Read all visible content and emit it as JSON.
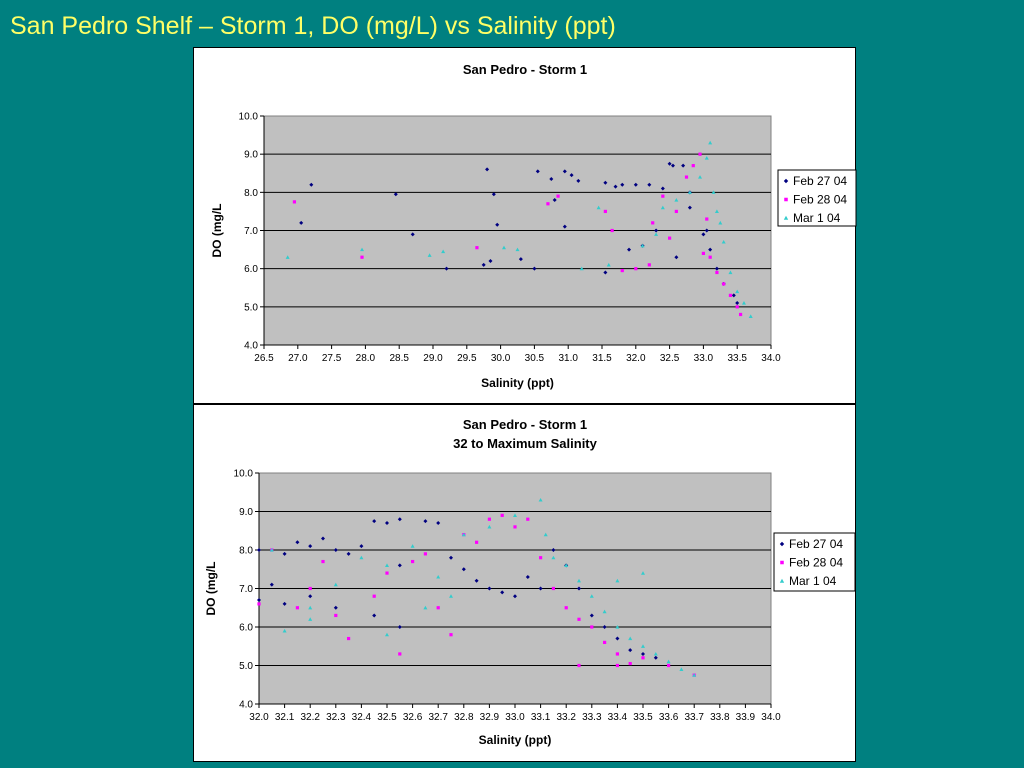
{
  "slide": {
    "title": "San Pedro Shelf – Storm 1, DO (mg/L) vs Salinity (ppt)"
  },
  "colors": {
    "background": "#008080",
    "title": "#ffff66",
    "plot_area": "#c0c0c0",
    "series": [
      "#000080",
      "#ff00ff",
      "#33cccc"
    ]
  },
  "chart_data": [
    {
      "type": "scatter",
      "title": "San Pedro - Storm 1",
      "subtitle": "",
      "xlabel": "Salinity (ppt)",
      "ylabel": "DO (mg/L",
      "xlim": [
        26.5,
        34.0
      ],
      "ylim": [
        4.0,
        10.0
      ],
      "x_ticks": [
        "26.5",
        "27.0",
        "27.5",
        "28.0",
        "28.5",
        "29.0",
        "29.5",
        "30.0",
        "30.5",
        "31.0",
        "31.5",
        "32.0",
        "32.5",
        "33.0",
        "33.5",
        "34.0"
      ],
      "y_ticks": [
        "4.0",
        "5.0",
        "6.0",
        "7.0",
        "8.0",
        "9.0",
        "10.0"
      ],
      "grid": "horizontal",
      "legend_position": "right",
      "series": [
        {
          "name": "Feb 27 04",
          "marker": "diamond",
          "points": [
            [
              27.05,
              7.2
            ],
            [
              27.2,
              8.2
            ],
            [
              28.45,
              7.95
            ],
            [
              28.7,
              6.9
            ],
            [
              29.2,
              6.0
            ],
            [
              29.75,
              6.1
            ],
            [
              29.8,
              8.6
            ],
            [
              29.85,
              6.2
            ],
            [
              29.95,
              7.15
            ],
            [
              29.9,
              7.95
            ],
            [
              30.3,
              6.25
            ],
            [
              30.5,
              6.0
            ],
            [
              30.55,
              8.55
            ],
            [
              30.75,
              8.35
            ],
            [
              30.8,
              7.8
            ],
            [
              30.95,
              8.55
            ],
            [
              30.95,
              7.1
            ],
            [
              31.05,
              8.45
            ],
            [
              31.15,
              8.3
            ],
            [
              31.55,
              5.9
            ],
            [
              31.55,
              8.25
            ],
            [
              31.7,
              8.15
            ],
            [
              31.8,
              8.2
            ],
            [
              32.0,
              8.2
            ],
            [
              32.2,
              8.2
            ],
            [
              32.4,
              8.1
            ],
            [
              32.5,
              8.75
            ],
            [
              32.55,
              8.7
            ],
            [
              32.6,
              6.3
            ],
            [
              32.7,
              8.7
            ],
            [
              32.8,
              8.0
            ],
            [
              33.0,
              6.9
            ],
            [
              33.1,
              6.5
            ],
            [
              33.2,
              6.0
            ],
            [
              33.3,
              5.6
            ],
            [
              33.45,
              5.3
            ],
            [
              33.5,
              5.1
            ],
            [
              32.3,
              7.0
            ],
            [
              32.1,
              6.6
            ],
            [
              31.9,
              6.5
            ],
            [
              32.8,
              7.6
            ],
            [
              33.05,
              7.0
            ]
          ]
        },
        {
          "name": "Feb 28 04",
          "marker": "square",
          "points": [
            [
              26.95,
              7.75
            ],
            [
              27.95,
              6.3
            ],
            [
              29.65,
              6.55
            ],
            [
              30.7,
              7.7
            ],
            [
              30.85,
              7.9
            ],
            [
              31.55,
              7.5
            ],
            [
              31.65,
              7.0
            ],
            [
              31.8,
              5.95
            ],
            [
              32.0,
              6.0
            ],
            [
              32.25,
              7.2
            ],
            [
              32.5,
              6.8
            ],
            [
              32.6,
              7.5
            ],
            [
              32.75,
              8.4
            ],
            [
              32.85,
              8.7
            ],
            [
              32.95,
              9.0
            ],
            [
              33.0,
              6.4
            ],
            [
              33.1,
              6.3
            ],
            [
              33.2,
              5.9
            ],
            [
              33.3,
              5.6
            ],
            [
              33.4,
              5.3
            ],
            [
              33.5,
              5.0
            ],
            [
              33.55,
              4.8
            ],
            [
              32.4,
              7.9
            ],
            [
              32.2,
              6.1
            ],
            [
              33.05,
              7.3
            ]
          ]
        },
        {
          "name": "Mar 1 04",
          "marker": "triangle",
          "points": [
            [
              26.85,
              6.3
            ],
            [
              27.95,
              6.5
            ],
            [
              28.95,
              6.35
            ],
            [
              29.15,
              6.45
            ],
            [
              30.05,
              6.55
            ],
            [
              30.25,
              6.5
            ],
            [
              31.2,
              6.0
            ],
            [
              31.45,
              7.6
            ],
            [
              31.6,
              6.1
            ],
            [
              32.4,
              7.6
            ],
            [
              32.6,
              7.8
            ],
            [
              32.8,
              8.0
            ],
            [
              32.95,
              8.4
            ],
            [
              33.1,
              9.3
            ],
            [
              33.15,
              8.0
            ],
            [
              33.2,
              7.5
            ],
            [
              33.3,
              6.7
            ],
            [
              33.4,
              5.9
            ],
            [
              33.5,
              5.4
            ],
            [
              33.6,
              5.1
            ],
            [
              33.7,
              4.75
            ],
            [
              32.1,
              6.6
            ],
            [
              32.3,
              6.9
            ],
            [
              33.25,
              7.2
            ],
            [
              33.05,
              8.9
            ]
          ]
        }
      ]
    },
    {
      "type": "scatter",
      "title": "San Pedro - Storm 1",
      "subtitle": "32 to Maximum Salinity",
      "xlabel": "Salinity (ppt)",
      "ylabel": "DO (mg/L",
      "xlim": [
        32.0,
        34.0
      ],
      "ylim": [
        4.0,
        10.0
      ],
      "x_ticks": [
        "32.0",
        "32.1",
        "32.2",
        "32.3",
        "32.4",
        "32.5",
        "32.6",
        "32.7",
        "32.8",
        "32.9",
        "33.0",
        "33.1",
        "33.2",
        "33.3",
        "33.4",
        "33.5",
        "33.6",
        "33.7",
        "33.8",
        "33.9",
        "34.0"
      ],
      "y_ticks": [
        "4.0",
        "5.0",
        "6.0",
        "7.0",
        "8.0",
        "9.0",
        "10.0"
      ],
      "grid": "horizontal",
      "legend_position": "right",
      "series": [
        {
          "name": "Feb 27 04",
          "marker": "diamond",
          "points": [
            [
              32.0,
              8.0
            ],
            [
              32.0,
              6.7
            ],
            [
              32.05,
              7.1
            ],
            [
              32.1,
              7.9
            ],
            [
              32.15,
              8.2
            ],
            [
              32.2,
              8.1
            ],
            [
              32.25,
              8.3
            ],
            [
              32.3,
              8.0
            ],
            [
              32.35,
              7.9
            ],
            [
              32.4,
              8.1
            ],
            [
              32.45,
              8.75
            ],
            [
              32.5,
              8.7
            ],
            [
              32.55,
              7.6
            ],
            [
              32.55,
              8.8
            ],
            [
              32.65,
              8.75
            ],
            [
              32.7,
              8.7
            ],
            [
              32.75,
              7.8
            ],
            [
              32.8,
              7.5
            ],
            [
              32.85,
              7.2
            ],
            [
              32.9,
              7.0
            ],
            [
              32.95,
              6.9
            ],
            [
              33.0,
              6.8
            ],
            [
              33.05,
              7.3
            ],
            [
              33.1,
              7.0
            ],
            [
              33.15,
              8.0
            ],
            [
              33.2,
              7.6
            ],
            [
              33.25,
              7.0
            ],
            [
              33.3,
              6.3
            ],
            [
              33.35,
              6.0
            ],
            [
              33.4,
              5.7
            ],
            [
              33.45,
              5.4
            ],
            [
              33.5,
              5.3
            ],
            [
              33.55,
              5.2
            ],
            [
              32.1,
              6.6
            ],
            [
              32.2,
              6.8
            ],
            [
              32.3,
              6.5
            ],
            [
              32.55,
              6.0
            ],
            [
              32.45,
              6.3
            ]
          ]
        },
        {
          "name": "Feb 28 04",
          "marker": "square",
          "points": [
            [
              32.0,
              6.6
            ],
            [
              32.05,
              8.0
            ],
            [
              32.15,
              6.5
            ],
            [
              32.2,
              7.0
            ],
            [
              32.3,
              6.3
            ],
            [
              32.35,
              5.7
            ],
            [
              32.45,
              6.8
            ],
            [
              32.55,
              5.3
            ],
            [
              32.6,
              7.7
            ],
            [
              32.7,
              6.5
            ],
            [
              32.75,
              5.8
            ],
            [
              32.8,
              8.4
            ],
            [
              32.85,
              8.2
            ],
            [
              32.9,
              8.8
            ],
            [
              32.95,
              8.9
            ],
            [
              33.0,
              8.6
            ],
            [
              33.05,
              8.8
            ],
            [
              33.1,
              7.8
            ],
            [
              33.15,
              7.0
            ],
            [
              33.2,
              6.5
            ],
            [
              33.25,
              6.2
            ],
            [
              33.3,
              6.0
            ],
            [
              33.35,
              5.6
            ],
            [
              33.4,
              5.3
            ],
            [
              33.45,
              5.05
            ],
            [
              33.5,
              5.2
            ],
            [
              33.6,
              5.0
            ],
            [
              33.7,
              4.75
            ],
            [
              33.25,
              5.0
            ],
            [
              33.4,
              5.0
            ],
            [
              32.5,
              7.4
            ],
            [
              32.65,
              7.9
            ],
            [
              32.25,
              7.7
            ]
          ]
        },
        {
          "name": "Mar 1 04",
          "marker": "triangle",
          "points": [
            [
              32.05,
              8.0
            ],
            [
              32.1,
              5.9
            ],
            [
              32.2,
              6.5
            ],
            [
              32.3,
              7.1
            ],
            [
              32.4,
              7.8
            ],
            [
              32.5,
              7.6
            ],
            [
              32.6,
              8.1
            ],
            [
              32.7,
              7.3
            ],
            [
              32.8,
              8.4
            ],
            [
              32.9,
              8.6
            ],
            [
              33.0,
              8.9
            ],
            [
              33.1,
              9.3
            ],
            [
              33.12,
              8.4
            ],
            [
              33.15,
              7.8
            ],
            [
              33.2,
              7.6
            ],
            [
              33.25,
              7.2
            ],
            [
              33.3,
              6.8
            ],
            [
              33.35,
              6.4
            ],
            [
              33.4,
              6.0
            ],
            [
              33.45,
              5.7
            ],
            [
              33.5,
              5.5
            ],
            [
              33.55,
              5.3
            ],
            [
              33.6,
              5.1
            ],
            [
              33.65,
              4.9
            ],
            [
              33.7,
              4.75
            ],
            [
              33.4,
              7.2
            ],
            [
              33.5,
              7.4
            ],
            [
              32.75,
              6.8
            ],
            [
              32.65,
              6.5
            ],
            [
              32.5,
              5.8
            ],
            [
              32.2,
              6.2
            ]
          ]
        }
      ]
    }
  ]
}
